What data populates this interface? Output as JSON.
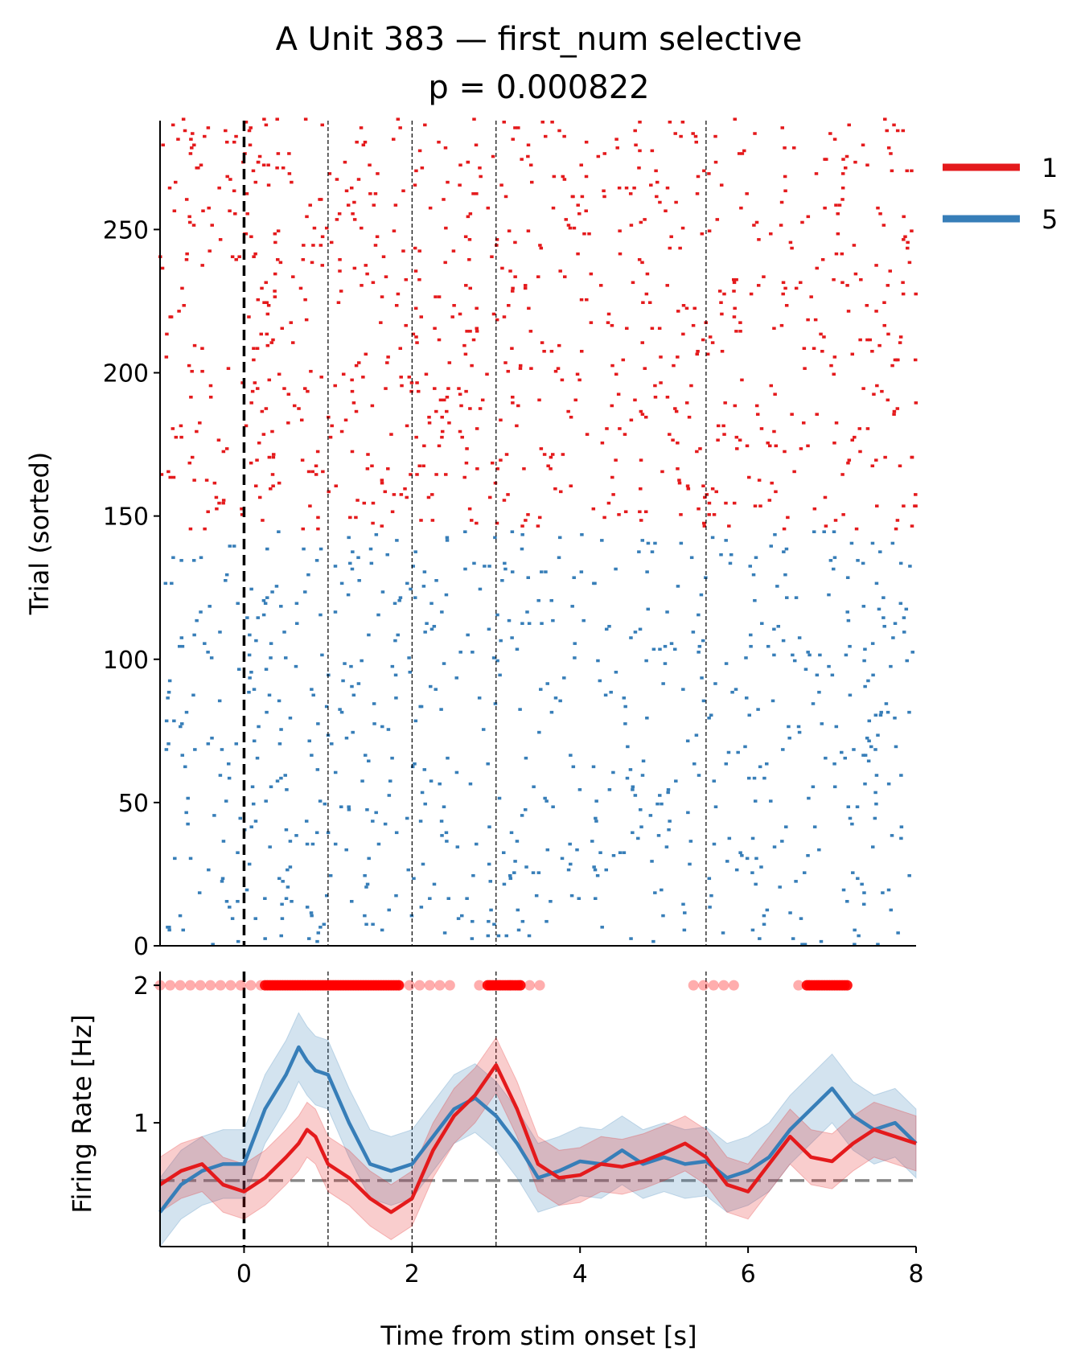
{
  "chart_data": [
    {
      "type": "raster",
      "title": "A Unit 383 — first_num selective",
      "subtitle": "p = 0.000822",
      "xlabel": "",
      "ylabel": "Trial (sorted)",
      "xlim": [
        -1,
        8
      ],
      "ylim": [
        0,
        288
      ],
      "yticks": [
        0,
        50,
        100,
        150,
        200,
        250
      ],
      "events": {
        "stim_onset": 0,
        "markers": [
          1,
          2,
          3,
          5.5
        ]
      },
      "series": [
        {
          "name": "1",
          "color": "#e41a1c",
          "trials": [
            145,
            288
          ],
          "spikes_per_trial_approx": 6
        },
        {
          "name": "5",
          "color": "#377eb8",
          "trials": [
            0,
            144
          ],
          "spikes_per_trial_approx": 5
        }
      ],
      "legend": {
        "placement": "top-right-outside"
      }
    },
    {
      "type": "line",
      "xlabel": "Time from stim onset [s]",
      "ylabel": "Firing Rate [Hz]",
      "xlim": [
        -1,
        8
      ],
      "ylim": [
        0.1,
        2.1
      ],
      "xticks": [
        0,
        2,
        4,
        6,
        8
      ],
      "yticks": [
        1,
        2
      ],
      "baseline": 0.58,
      "events": {
        "stim_onset": 0,
        "markers": [
          1,
          2,
          3,
          5.5
        ]
      },
      "x": [
        -1.0,
        -0.75,
        -0.5,
        -0.25,
        0.0,
        0.25,
        0.5,
        0.65,
        0.75,
        0.85,
        1.0,
        1.25,
        1.5,
        1.75,
        2.0,
        2.25,
        2.5,
        2.75,
        3.0,
        3.25,
        3.5,
        3.75,
        4.0,
        4.25,
        4.5,
        4.75,
        5.0,
        5.25,
        5.5,
        5.75,
        6.0,
        6.25,
        6.5,
        6.75,
        7.0,
        7.25,
        7.5,
        7.75,
        8.0
      ],
      "series": [
        {
          "name": "1",
          "color": "#e41a1c",
          "values": [
            0.55,
            0.65,
            0.7,
            0.55,
            0.5,
            0.6,
            0.75,
            0.85,
            0.95,
            0.9,
            0.7,
            0.6,
            0.45,
            0.35,
            0.45,
            0.8,
            1.05,
            1.2,
            1.42,
            1.1,
            0.7,
            0.6,
            0.62,
            0.7,
            0.68,
            0.72,
            0.78,
            0.85,
            0.75,
            0.55,
            0.5,
            0.7,
            0.9,
            0.75,
            0.72,
            0.85,
            0.95,
            0.9,
            0.85
          ],
          "ci_half_width": 0.2
        },
        {
          "name": "5",
          "color": "#377eb8",
          "values": [
            0.35,
            0.55,
            0.65,
            0.7,
            0.7,
            1.1,
            1.35,
            1.55,
            1.45,
            1.38,
            1.35,
            1.0,
            0.7,
            0.65,
            0.7,
            0.9,
            1.1,
            1.18,
            1.05,
            0.85,
            0.6,
            0.65,
            0.72,
            0.7,
            0.8,
            0.7,
            0.75,
            0.7,
            0.72,
            0.6,
            0.65,
            0.75,
            0.95,
            1.1,
            1.25,
            1.05,
            0.95,
            1.0,
            0.85
          ],
          "ci_half_width": 0.25
        }
      ],
      "significance_markers": {
        "y": 2,
        "color": "#ff0000",
        "strong": [
          [
            0.25,
            1.85
          ],
          [
            2.9,
            3.3
          ],
          [
            6.7,
            7.2
          ]
        ],
        "weak": [
          [
            -1.0,
            0.2
          ],
          [
            1.85,
            2.5
          ],
          [
            2.8,
            3.6
          ],
          [
            5.35,
            5.9
          ],
          [
            6.6,
            6.75
          ]
        ]
      }
    }
  ]
}
